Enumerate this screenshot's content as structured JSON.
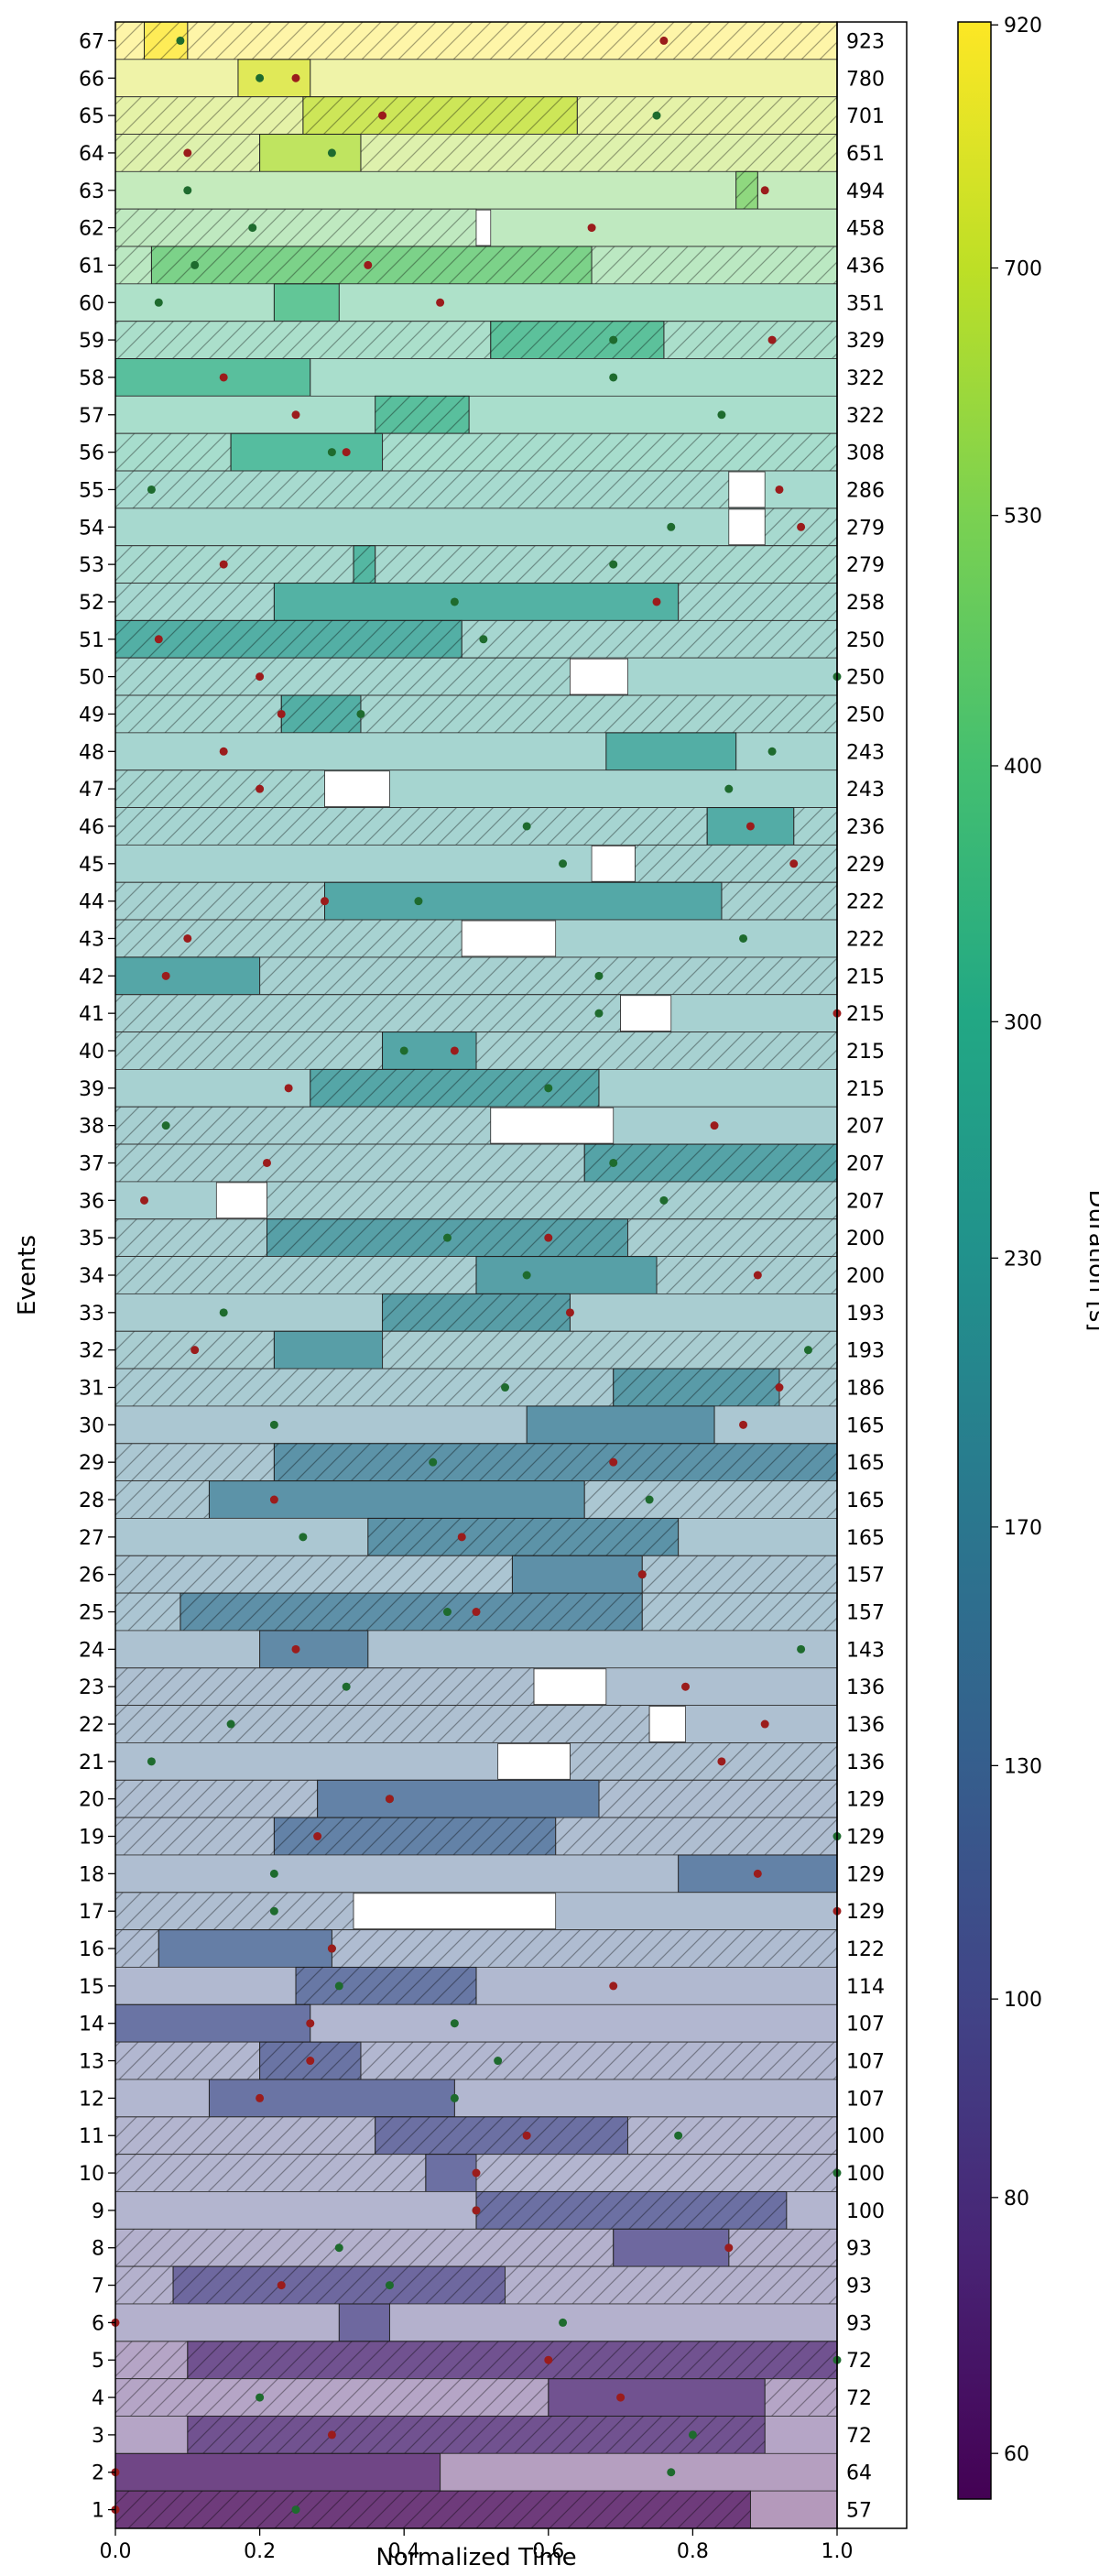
{
  "chart_data": {
    "type": "bar",
    "xlabel": "Normalized Time",
    "ylabel": "Events",
    "xlim": [
      0,
      1
    ],
    "x_ticks": [
      "0.0",
      "0.2",
      "0.4",
      "0.6",
      "0.8",
      "1.0"
    ],
    "colorbar": {
      "label": "Duration [s]",
      "range": [
        57,
        923
      ],
      "scale": "log",
      "colormap": "viridis",
      "ticks": [
        "60",
        "80",
        "100",
        "130",
        "170",
        "230",
        "300",
        "400",
        "530",
        "700",
        "920"
      ]
    },
    "legend_markers": {
      "green_dot_color": "#1e6b2e",
      "red_dot_color": "#9b1c1c"
    },
    "events": [
      {
        "label": "67",
        "duration": "923",
        "gap": null,
        "bar": [
          0.04,
          0.1
        ],
        "green": 0.09,
        "red": 0.76
      },
      {
        "label": "66",
        "duration": "780",
        "gap": null,
        "bar": [
          0.17,
          0.27
        ],
        "green": 0.2,
        "red": 0.25
      },
      {
        "label": "65",
        "duration": "701",
        "gap": null,
        "bar": [
          0.26,
          0.64
        ],
        "green": 0.75,
        "red": 0.37
      },
      {
        "label": "64",
        "duration": "651",
        "gap": null,
        "bar": [
          0.2,
          0.34
        ],
        "green": 0.3,
        "red": 0.1
      },
      {
        "label": "63",
        "duration": "494",
        "gap": null,
        "bar": [
          0.86,
          0.89
        ],
        "green": 0.1,
        "red": 0.9
      },
      {
        "label": "62",
        "duration": "458",
        "gap": [
          0.5,
          0.52
        ],
        "bar": null,
        "green": 0.19,
        "red": 0.66
      },
      {
        "label": "61",
        "duration": "436",
        "gap": null,
        "bar": [
          0.05,
          0.66
        ],
        "green": 0.11,
        "red": 0.35
      },
      {
        "label": "60",
        "duration": "351",
        "gap": null,
        "bar": [
          0.22,
          0.31
        ],
        "green": 0.06,
        "red": 0.45
      },
      {
        "label": "59",
        "duration": "329",
        "gap": null,
        "bar": [
          0.52,
          0.76
        ],
        "green": 0.69,
        "red": 0.91
      },
      {
        "label": "58",
        "duration": "322",
        "gap": null,
        "bar": [
          0.0,
          0.27
        ],
        "green": 0.69,
        "red": 0.15
      },
      {
        "label": "57",
        "duration": "322",
        "gap": null,
        "bar": [
          0.36,
          0.49
        ],
        "green": 0.84,
        "red": 0.25
      },
      {
        "label": "56",
        "duration": "308",
        "gap": null,
        "bar": [
          0.16,
          0.37
        ],
        "green": 0.3,
        "red": 0.32
      },
      {
        "label": "55",
        "duration": "286",
        "gap": [
          0.85,
          0.9
        ],
        "bar": null,
        "green": 0.05,
        "red": 0.92
      },
      {
        "label": "54",
        "duration": "279",
        "gap": [
          0.85,
          0.9
        ],
        "bar": null,
        "green": 0.77,
        "red": 0.95
      },
      {
        "label": "53",
        "duration": "279",
        "gap": null,
        "bar": [
          0.33,
          0.36
        ],
        "green": 0.69,
        "red": 0.15
      },
      {
        "label": "52",
        "duration": "258",
        "gap": null,
        "bar": [
          0.22,
          0.78
        ],
        "green": 0.47,
        "red": 0.75
      },
      {
        "label": "51",
        "duration": "250",
        "gap": null,
        "bar": [
          0.0,
          0.48
        ],
        "green": 0.51,
        "red": 0.06
      },
      {
        "label": "50",
        "duration": "250",
        "gap": [
          0.63,
          0.71
        ],
        "bar": null,
        "green": 1.0,
        "red": 0.2
      },
      {
        "label": "49",
        "duration": "250",
        "gap": null,
        "bar": [
          0.23,
          0.34
        ],
        "green": 0.34,
        "red": 0.23
      },
      {
        "label": "48",
        "duration": "243",
        "gap": null,
        "bar": [
          0.68,
          0.86
        ],
        "green": 0.91,
        "red": 0.15
      },
      {
        "label": "47",
        "duration": "243",
        "gap": [
          0.29,
          0.38
        ],
        "bar": null,
        "green": 0.85,
        "red": 0.2
      },
      {
        "label": "46",
        "duration": "236",
        "gap": null,
        "bar": [
          0.82,
          0.94
        ],
        "green": 0.57,
        "red": 0.88
      },
      {
        "label": "45",
        "duration": "229",
        "gap": [
          0.66,
          0.72
        ],
        "bar": null,
        "green": 0.62,
        "red": 0.94
      },
      {
        "label": "44",
        "duration": "222",
        "gap": null,
        "bar": [
          0.29,
          0.84
        ],
        "green": 0.42,
        "red": 0.29
      },
      {
        "label": "43",
        "duration": "222",
        "gap": [
          0.48,
          0.61
        ],
        "bar": null,
        "green": 0.87,
        "red": 0.1
      },
      {
        "label": "42",
        "duration": "215",
        "gap": null,
        "bar": [
          0.0,
          0.2
        ],
        "green": 0.67,
        "red": 0.07
      },
      {
        "label": "41",
        "duration": "215",
        "gap": [
          0.7,
          0.77
        ],
        "bar": null,
        "green": 0.67,
        "red": 1.0
      },
      {
        "label": "40",
        "duration": "215",
        "gap": null,
        "bar": [
          0.37,
          0.5
        ],
        "green": 0.4,
        "red": 0.47
      },
      {
        "label": "39",
        "duration": "215",
        "gap": null,
        "bar": [
          0.27,
          0.67
        ],
        "green": 0.6,
        "red": 0.24
      },
      {
        "label": "38",
        "duration": "207",
        "gap": [
          0.52,
          0.69
        ],
        "bar": null,
        "green": 0.07,
        "red": 0.83
      },
      {
        "label": "37",
        "duration": "207",
        "gap": null,
        "bar": [
          0.65,
          1.0
        ],
        "green": 0.69,
        "red": 0.21
      },
      {
        "label": "36",
        "duration": "207",
        "gap": [
          0.14,
          0.21
        ],
        "bar": null,
        "green": 0.76,
        "red": 0.04
      },
      {
        "label": "35",
        "duration": "200",
        "gap": null,
        "bar": [
          0.21,
          0.71
        ],
        "green": 0.46,
        "red": 0.6
      },
      {
        "label": "34",
        "duration": "200",
        "gap": null,
        "bar": [
          0.5,
          0.75
        ],
        "green": 0.57,
        "red": 0.89
      },
      {
        "label": "33",
        "duration": "193",
        "gap": null,
        "bar": [
          0.37,
          0.63
        ],
        "green": 0.15,
        "red": 0.63
      },
      {
        "label": "32",
        "duration": "193",
        "gap": null,
        "bar": [
          0.22,
          0.37
        ],
        "green": 0.96,
        "red": 0.11
      },
      {
        "label": "31",
        "duration": "186",
        "gap": null,
        "bar": [
          0.69,
          0.92
        ],
        "green": 0.54,
        "red": 0.92
      },
      {
        "label": "30",
        "duration": "165",
        "gap": null,
        "bar": [
          0.57,
          0.83
        ],
        "green": 0.22,
        "red": 0.87
      },
      {
        "label": "29",
        "duration": "165",
        "gap": null,
        "bar": [
          0.22,
          1.0
        ],
        "green": 0.44,
        "red": 0.69
      },
      {
        "label": "28",
        "duration": "165",
        "gap": null,
        "bar": [
          0.13,
          0.65
        ],
        "green": 0.74,
        "red": 0.22
      },
      {
        "label": "27",
        "duration": "165",
        "gap": null,
        "bar": [
          0.35,
          0.78
        ],
        "green": 0.26,
        "red": 0.48
      },
      {
        "label": "26",
        "duration": "157",
        "gap": null,
        "bar": [
          0.55,
          0.73
        ],
        "green": 0.73,
        "red": 0.73
      },
      {
        "label": "25",
        "duration": "157",
        "gap": null,
        "bar": [
          0.09,
          0.73
        ],
        "green": 0.46,
        "red": 0.5
      },
      {
        "label": "24",
        "duration": "143",
        "gap": null,
        "bar": [
          0.2,
          0.35
        ],
        "green": 0.95,
        "red": 0.25
      },
      {
        "label": "23",
        "duration": "136",
        "gap": [
          0.58,
          0.68
        ],
        "bar": null,
        "green": 0.32,
        "red": 0.79
      },
      {
        "label": "22",
        "duration": "136",
        "gap": [
          0.74,
          0.79
        ],
        "bar": null,
        "green": 0.16,
        "red": 0.9
      },
      {
        "label": "21",
        "duration": "136",
        "gap": [
          0.53,
          0.63
        ],
        "bar": null,
        "green": 0.05,
        "red": 0.84
      },
      {
        "label": "20",
        "duration": "129",
        "gap": null,
        "bar": [
          0.28,
          0.67
        ],
        "green": 0.38,
        "red": 0.38
      },
      {
        "label": "19",
        "duration": "129",
        "gap": null,
        "bar": [
          0.22,
          0.61
        ],
        "green": 1.0,
        "red": 0.28
      },
      {
        "label": "18",
        "duration": "129",
        "gap": null,
        "bar": [
          0.78,
          1.0
        ],
        "green": 0.22,
        "red": 0.89
      },
      {
        "label": "17",
        "duration": "129",
        "gap": [
          0.33,
          0.61
        ],
        "bar": null,
        "green": 0.22,
        "red": 1.0
      },
      {
        "label": "16",
        "duration": "122",
        "gap": null,
        "bar": [
          0.06,
          0.3
        ],
        "green": 0.3,
        "red": 0.3
      },
      {
        "label": "15",
        "duration": "114",
        "gap": null,
        "bar": [
          0.25,
          0.5
        ],
        "green": 0.31,
        "red": 0.69
      },
      {
        "label": "14",
        "duration": "107",
        "gap": null,
        "bar": [
          0.0,
          0.27
        ],
        "green": 0.47,
        "red": 0.27
      },
      {
        "label": "13",
        "duration": "107",
        "gap": null,
        "bar": [
          0.2,
          0.34
        ],
        "green": 0.53,
        "red": 0.27
      },
      {
        "label": "12",
        "duration": "107",
        "gap": null,
        "bar": [
          0.13,
          0.47
        ],
        "green": 0.47,
        "red": 0.2
      },
      {
        "label": "11",
        "duration": "100",
        "gap": null,
        "bar": [
          0.36,
          0.71
        ],
        "green": 0.78,
        "red": 0.57
      },
      {
        "label": "10",
        "duration": "100",
        "gap": null,
        "bar": [
          0.43,
          0.5
        ],
        "green": 1.0,
        "red": 0.5
      },
      {
        "label": "9",
        "duration": "100",
        "gap": null,
        "bar": [
          0.5,
          0.93
        ],
        "green": 0.5,
        "red": 0.5
      },
      {
        "label": "8",
        "duration": "93",
        "gap": null,
        "bar": [
          0.69,
          0.85
        ],
        "green": 0.31,
        "red": 0.85
      },
      {
        "label": "7",
        "duration": "93",
        "gap": null,
        "bar": [
          0.08,
          0.54
        ],
        "green": 0.38,
        "red": 0.23
      },
      {
        "label": "6",
        "duration": "93",
        "gap": null,
        "bar": [
          0.31,
          0.38
        ],
        "green": 0.62,
        "red": 0.0
      },
      {
        "label": "5",
        "duration": "72",
        "gap": null,
        "bar": [
          0.1,
          1.0
        ],
        "green": 1.0,
        "red": 0.6
      },
      {
        "label": "4",
        "duration": "72",
        "gap": null,
        "bar": [
          0.6,
          0.9
        ],
        "green": 0.2,
        "red": 0.7
      },
      {
        "label": "3",
        "duration": "72",
        "gap": null,
        "bar": [
          0.1,
          0.9
        ],
        "green": 0.8,
        "red": 0.3
      },
      {
        "label": "2",
        "duration": "64",
        "gap": null,
        "bar": [
          0.0,
          0.45
        ],
        "green": 0.77,
        "red": 0.0
      },
      {
        "label": "1",
        "duration": "57",
        "gap": null,
        "bar": [
          0.0,
          0.88
        ],
        "green": 0.25,
        "red": 0.0
      }
    ]
  }
}
